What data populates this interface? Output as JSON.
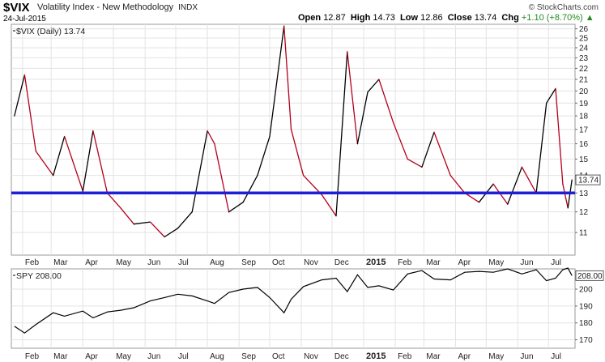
{
  "header": {
    "symbol": "$VIX",
    "name": "Volatility Index - New Methodology",
    "exchange": "INDX",
    "date": "24-Jul-2015",
    "credit": "© StockCharts.com",
    "quote": {
      "open_label": "Open",
      "open": "12.87",
      "high_label": "High",
      "high": "14.73",
      "low_label": "Low",
      "low": "12.86",
      "close_label": "Close",
      "close": "13.74",
      "chg_label": "Chg",
      "chg": "+1.10 (+8.70%)",
      "chg_arrow": "▲"
    }
  },
  "colors": {
    "up": "#000000",
    "down": "#b3001b",
    "hline": "#1f1fd6",
    "chg": "#228B22"
  },
  "chart_data": [
    {
      "type": "line",
      "legend": "$VIX (Daily) 13.74",
      "ylim": [
        10,
        26.5
      ],
      "scale": "log",
      "yticks": [
        11,
        12,
        13,
        14,
        15,
        16,
        17,
        18,
        19,
        20,
        21,
        22,
        23,
        24,
        25,
        26
      ],
      "last_value": "13.74",
      "horizontal_line": 13.0,
      "months": [
        "Feb",
        "Mar",
        "Apr",
        "May",
        "Jun",
        "Jul",
        "Aug",
        "Sep",
        "Oct",
        "Nov",
        "Dec",
        "2015",
        "Feb",
        "Mar",
        "Apr",
        "May",
        "Jun",
        "Jul"
      ],
      "x": [
        "2014-01-24",
        "2014-02-03",
        "2014-02-14",
        "2014-03-03",
        "2014-03-14",
        "2014-04-01",
        "2014-04-11",
        "2014-04-25",
        "2014-05-08",
        "2014-05-21",
        "2014-06-06",
        "2014-06-20",
        "2014-07-03",
        "2014-07-17",
        "2014-08-01",
        "2014-08-08",
        "2014-08-22",
        "2014-09-05",
        "2014-09-19",
        "2014-10-01",
        "2014-10-15",
        "2014-10-22",
        "2014-11-03",
        "2014-11-21",
        "2014-12-05",
        "2014-12-16",
        "2014-12-26",
        "2015-01-05",
        "2015-01-16",
        "2015-01-30",
        "2015-02-13",
        "2015-02-27",
        "2015-03-11",
        "2015-03-27",
        "2015-04-10",
        "2015-04-24",
        "2015-05-08",
        "2015-05-22",
        "2015-06-05",
        "2015-06-19",
        "2015-06-29",
        "2015-07-08",
        "2015-07-15",
        "2015-07-20",
        "2015-07-24"
      ],
      "values": [
        18.0,
        21.4,
        15.5,
        14.0,
        16.5,
        13.1,
        16.9,
        13.0,
        12.2,
        11.4,
        11.5,
        10.8,
        11.2,
        12.0,
        16.9,
        16.0,
        12.0,
        12.5,
        14.0,
        16.5,
        26.3,
        17.0,
        14.0,
        12.9,
        11.8,
        23.6,
        16.0,
        19.9,
        21.0,
        17.5,
        15.0,
        14.5,
        16.8,
        14.0,
        13.0,
        12.5,
        13.5,
        12.4,
        14.5,
        13.0,
        19.0,
        20.2,
        13.5,
        12.2,
        13.74
      ],
      "series": [
        {
          "name": "$VIX"
        }
      ]
    },
    {
      "type": "line",
      "legend": "SPY 208.00",
      "ylim": [
        165,
        212
      ],
      "yticks": [
        170,
        180,
        190,
        200,
        208
      ],
      "last_value": "208.00",
      "months": [
        "Feb",
        "Mar",
        "Apr",
        "May",
        "Jun",
        "Jul",
        "Aug",
        "Sep",
        "Oct",
        "Nov",
        "Dec",
        "2015",
        "Feb",
        "Mar",
        "Apr",
        "May",
        "Jun",
        "Jul"
      ],
      "x": [
        "2014-01-24",
        "2014-02-03",
        "2014-02-14",
        "2014-03-03",
        "2014-03-14",
        "2014-04-01",
        "2014-04-11",
        "2014-04-25",
        "2014-05-08",
        "2014-05-21",
        "2014-06-06",
        "2014-06-20",
        "2014-07-03",
        "2014-07-17",
        "2014-08-01",
        "2014-08-08",
        "2014-08-22",
        "2014-09-05",
        "2014-09-19",
        "2014-10-01",
        "2014-10-15",
        "2014-10-22",
        "2014-11-03",
        "2014-11-21",
        "2014-12-05",
        "2014-12-16",
        "2014-12-26",
        "2015-01-05",
        "2015-01-16",
        "2015-01-30",
        "2015-02-13",
        "2015-02-27",
        "2015-03-11",
        "2015-03-27",
        "2015-04-10",
        "2015-04-24",
        "2015-05-08",
        "2015-05-22",
        "2015-06-05",
        "2015-06-19",
        "2015-06-29",
        "2015-07-08",
        "2015-07-15",
        "2015-07-20",
        "2015-07-24"
      ],
      "values": [
        178.0,
        174.0,
        179.0,
        186.0,
        184.0,
        187.0,
        183.0,
        186.5,
        187.5,
        189.0,
        193.0,
        195.0,
        197.0,
        196.0,
        193.0,
        191.5,
        198.0,
        200.0,
        201.0,
        195.0,
        186.0,
        194.0,
        201.5,
        205.5,
        206.5,
        198.5,
        208.5,
        201.0,
        202.0,
        199.5,
        209.0,
        211.0,
        206.0,
        205.5,
        210.0,
        210.5,
        210.0,
        212.0,
        209.0,
        211.5,
        205.0,
        206.5,
        211.5,
        212.5,
        208.0
      ],
      "series": [
        {
          "name": "SPY"
        }
      ]
    }
  ]
}
